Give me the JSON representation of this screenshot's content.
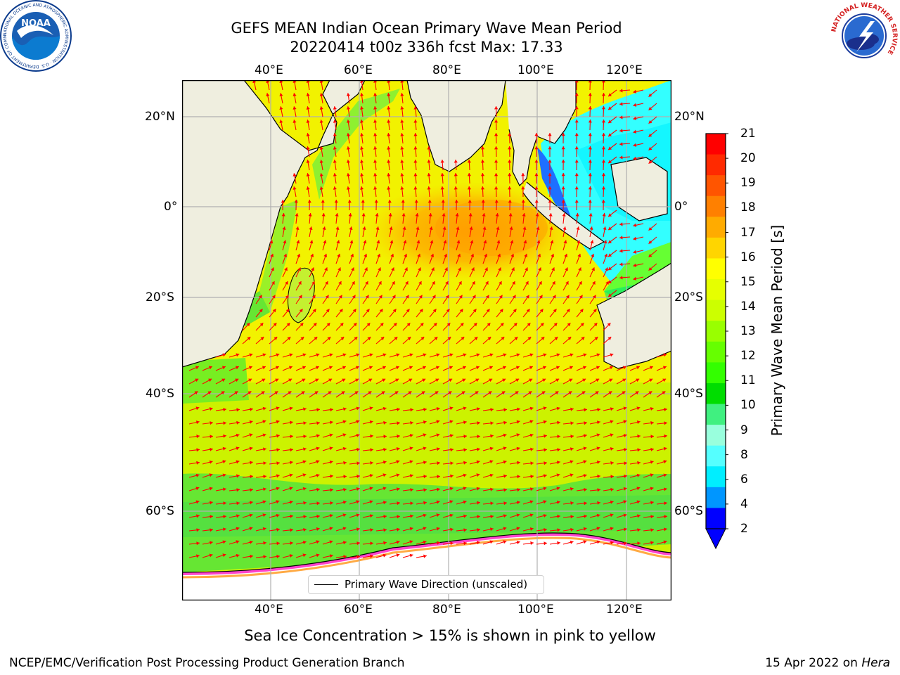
{
  "header": {
    "title_line1": "GEFS MEAN Indian Ocean Primary Wave Mean Period",
    "title_line2": "20220414 t00z 336h fcst   Max: 17.33"
  },
  "map": {
    "lon_ticks_top": [
      "40°E",
      "60°E",
      "80°E",
      "100°E",
      "120°E"
    ],
    "lon_ticks_bottom": [
      "40°E",
      "60°E",
      "80°E",
      "100°E",
      "120°E"
    ],
    "lat_ticks_left": [
      "20°N",
      "0°",
      "20°S",
      "40°S",
      "60°S"
    ],
    "lat_ticks_right": [
      "20°N",
      "0°",
      "20°S",
      "40°S",
      "60°S"
    ],
    "land_color": "#efeedf",
    "arrow_color": "#ff0000",
    "grid_color": "#b0b0b0"
  },
  "legend": {
    "label": "Primary Wave Direction (unscaled)"
  },
  "colorbar": {
    "label": "Primary Wave Mean Period [s]",
    "ticks": [
      "21",
      "20",
      "19",
      "18",
      "17",
      "16",
      "15",
      "14",
      "13",
      "12",
      "11",
      "10",
      "9",
      "8",
      "6",
      "4",
      "2"
    ],
    "colors": [
      "#ff0000",
      "#ff2a00",
      "#ff5500",
      "#ff8000",
      "#ffab00",
      "#ffd500",
      "#ffff00",
      "#e6ff00",
      "#ccff00",
      "#99ff00",
      "#66ff00",
      "#33ff00",
      "#00dd00",
      "#40f080",
      "#99ffdd",
      "#55ffff",
      "#00eeff",
      "#0096ff",
      "#0000ff"
    ]
  },
  "notes": {
    "sea_ice": "Sea Ice Concentration > 15% is shown in pink to yellow"
  },
  "footer": {
    "left": "NCEP/EMC/Verification Post Processing Product Generation Branch",
    "right_prefix": "15 Apr 2022 on ",
    "right_host": "Hera"
  },
  "logos": {
    "noaa": {
      "text": "NOAA",
      "ring_text": "NATIONAL OCEANIC AND ATMOSPHERIC ADMINISTRATION · U.S. DEPARTMENT OF COMMERCE"
    },
    "nws": {
      "ring_text": "NATIONAL WEATHER SERVICE"
    }
  }
}
